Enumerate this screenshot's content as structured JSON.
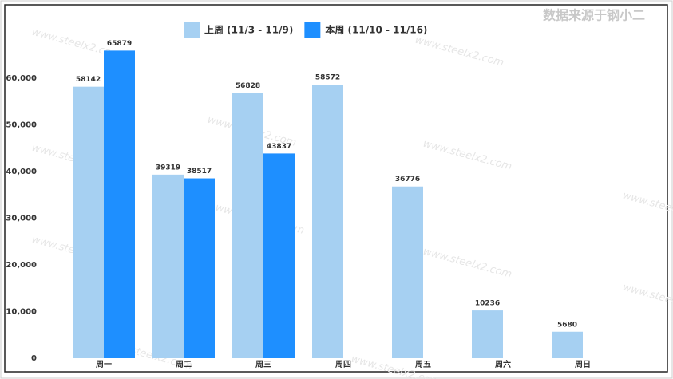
{
  "chart_data": {
    "type": "bar",
    "source_note": "数据来源于钢小二",
    "watermark": "www.steelx2.com",
    "categories": [
      "周一",
      "周二",
      "周三",
      "周四",
      "周五",
      "周六",
      "周日"
    ],
    "series": [
      {
        "name": "上周 (11/3 - 11/9)",
        "color": "#a6d0f2",
        "values": [
          58142,
          39319,
          56828,
          58572,
          36776,
          10236,
          5680
        ]
      },
      {
        "name": "本周 (11/10 - 11/16)",
        "color": "#1e8fff",
        "values": [
          65879,
          38517,
          43837,
          null,
          null,
          null,
          null
        ]
      }
    ],
    "ylim": [
      0,
      75000
    ],
    "yticks": [
      0,
      {
        "value": 10000,
        "label": "10,000"
      },
      {
        "value": 20000,
        "label": "20,000"
      },
      {
        "value": 30000,
        "label": "30,000"
      },
      {
        "value": 40000,
        "label": "40,000"
      },
      {
        "value": 50000,
        "label": "50,000"
      },
      {
        "value": 60000,
        "label": "60,000"
      }
    ],
    "legend": "top"
  }
}
